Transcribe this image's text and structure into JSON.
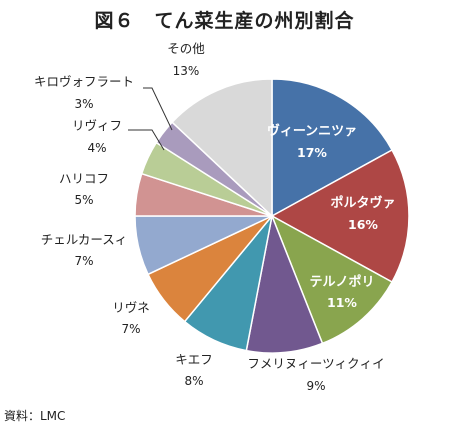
{
  "title": "図６　てん菜生産の州別割合",
  "source": "資料：LMC",
  "chart_data": {
    "type": "pie",
    "title": "図６　てん菜生産の州別割合",
    "slices": [
      {
        "label": "ヴィーンニツァ",
        "value": 17,
        "pct": "17%",
        "color": "#4672a8",
        "text_color": "#ffffff"
      },
      {
        "label": "ポルタヴァ",
        "value": 16,
        "pct": "16%",
        "color": "#ae4745",
        "text_color": "#ffffff"
      },
      {
        "label": "テルノポリ",
        "value": 11,
        "pct": "11%",
        "color": "#89a54e",
        "text_color": "#ffffff"
      },
      {
        "label": "フメリヌィーツィクィイ",
        "value": 9,
        "pct": "9%",
        "color": "#71588f",
        "text_color": "#222222"
      },
      {
        "label": "キエフ",
        "value": 8,
        "pct": "8%",
        "color": "#4198af",
        "text_color": "#222222"
      },
      {
        "label": "リヴネ",
        "value": 7,
        "pct": "7%",
        "color": "#db843d",
        "text_color": "#222222"
      },
      {
        "label": "チェルカースィ",
        "value": 7,
        "pct": "7%",
        "color": "#93a9cf",
        "text_color": "#222222"
      },
      {
        "label": "ハリコフ",
        "value": 5,
        "pct": "5%",
        "color": "#d19392",
        "text_color": "#222222"
      },
      {
        "label": "リヴィフ",
        "value": 4,
        "pct": "4%",
        "color": "#b9cd96",
        "text_color": "#222222"
      },
      {
        "label": "キロヴォフラート",
        "value": 3,
        "pct": "3%",
        "color": "#a99bbd",
        "text_color": "#222222"
      },
      {
        "label": "その他",
        "value": 13,
        "pct": "13%",
        "color": "#d9d9d9",
        "text_color": "#222222"
      }
    ]
  }
}
